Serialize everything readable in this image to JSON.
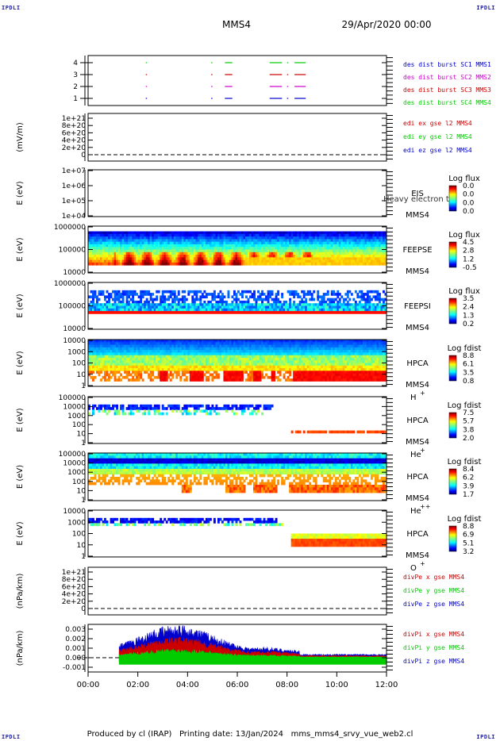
{
  "header": {
    "mission": "MMS4",
    "datetime": "29/Apr/2020 00:00"
  },
  "corner_label": "IPDLI",
  "footer": {
    "producer": "Produced by cl (IRAP)",
    "printing": "Printing date: 13/Jan/2024",
    "script": "mms_mms4_srvy_vue_web2.cl"
  },
  "colors": {
    "blue": "#0000cc",
    "magenta": "#cc00cc",
    "red": "#cc0000",
    "green": "#00cc00"
  },
  "time_axis": {
    "start_hour": 0,
    "end_hour": 12,
    "ticks": [
      "00:00",
      "02:00",
      "04:00",
      "06:00",
      "08:00",
      "10:00",
      "12:00"
    ]
  },
  "chart_data": [
    {
      "id": "burst",
      "type": "scatter",
      "yticks": [
        "1",
        "2",
        "3",
        "4"
      ],
      "legend": [
        {
          "text": "des dist burst SC1 MMS1",
          "color": "#0000cc"
        },
        {
          "text": "des dist burst SC2 MMS2",
          "color": "#cc00cc"
        },
        {
          "text": "des dist burst SC3 MMS3",
          "color": "#cc0000"
        },
        {
          "text": "des dist burst SC4 MMS4",
          "color": "#00cc00"
        }
      ],
      "series": [
        {
          "sc": 1,
          "intervals": [
            [
              2.32,
              2.36
            ],
            [
              4.95,
              5.0
            ],
            [
              5.5,
              5.8
            ],
            [
              7.3,
              7.8
            ],
            [
              8.0,
              8.05
            ],
            [
              8.3,
              8.75
            ]
          ]
        },
        {
          "sc": 2,
          "intervals": [
            [
              2.32,
              2.36
            ],
            [
              4.95,
              5.0
            ],
            [
              5.5,
              5.8
            ],
            [
              7.3,
              7.8
            ],
            [
              8.0,
              8.05
            ],
            [
              8.3,
              8.75
            ]
          ]
        },
        {
          "sc": 3,
          "intervals": [
            [
              2.32,
              2.36
            ],
            [
              4.95,
              5.0
            ],
            [
              5.5,
              5.8
            ],
            [
              7.3,
              7.8
            ],
            [
              8.0,
              8.05
            ],
            [
              8.3,
              8.75
            ]
          ]
        },
        {
          "sc": 4,
          "intervals": [
            [
              2.32,
              2.36
            ],
            [
              4.95,
              5.0
            ],
            [
              5.5,
              5.8
            ],
            [
              7.3,
              7.8
            ],
            [
              8.0,
              8.05
            ],
            [
              8.3,
              8.75
            ]
          ]
        }
      ]
    },
    {
      "id": "edi",
      "type": "line",
      "ylabel": "(mV/m)",
      "yticks": [
        "0",
        "2e+20",
        "4e+20",
        "6e+20",
        "8e+20",
        "1e+21"
      ],
      "legend": [
        {
          "text": "edi ex gse l2 MMS4",
          "color": "#cc0000"
        },
        {
          "text": "edi ey gse l2 MMS4",
          "color": "#00cc00"
        },
        {
          "text": "edi ez gse l2 MMS4",
          "color": "#0000cc"
        }
      ]
    },
    {
      "id": "eis",
      "type": "heatmap",
      "ylabel": "E (eV)",
      "yticks": [
        "1e+04",
        "1e+05",
        "1e+06",
        "1e+07"
      ],
      "instrument": "EIS",
      "spacecraft": "MMS4",
      "overlay_text": "Heavy electron to",
      "colorbar": {
        "title": "Log flux",
        "labels": [
          "0.0",
          "0.0",
          "0.0",
          "0.0"
        ]
      }
    },
    {
      "id": "feepse",
      "type": "heatmap",
      "ylabel": "E (eV)",
      "yticks": [
        "10000",
        "100000",
        "1000000"
      ],
      "instrument": "FEEPSE",
      "spacecraft": "MMS4",
      "colorbar": {
        "title": "Log flux",
        "labels": [
          "4.5",
          "2.8",
          "1.2",
          "-0.5"
        ]
      }
    },
    {
      "id": "feepsi",
      "type": "heatmap",
      "ylabel": "E (eV)",
      "yticks": [
        "10000",
        "100000",
        "1000000"
      ],
      "instrument": "FEEPSI",
      "spacecraft": "MMS4",
      "colorbar": {
        "title": "Log flux",
        "labels": [
          "3.5",
          "2.4",
          "1.3",
          "0.2"
        ]
      }
    },
    {
      "id": "hpca_h",
      "type": "heatmap",
      "ylabel": "E (eV)",
      "yticks": [
        "1",
        "10",
        "100",
        "1000",
        "10000"
      ],
      "instrument": "HPCA",
      "spacecraft": "MMS4",
      "species": "H",
      "charge": "+",
      "colorbar": {
        "title": "Log fdist",
        "labels": [
          "8.8",
          "6.1",
          "3.5",
          "0.8"
        ]
      }
    },
    {
      "id": "hpca_he1",
      "type": "heatmap",
      "ylabel": "E (eV)",
      "yticks": [
        "1",
        "10",
        "100",
        "1000",
        "10000",
        "100000"
      ],
      "instrument": "HPCA",
      "spacecraft": "MMS4",
      "species": "He",
      "charge": "+",
      "colorbar": {
        "title": "Log fdist",
        "labels": [
          "7.5",
          "5.7",
          "3.8",
          "2.0"
        ]
      }
    },
    {
      "id": "hpca_he2",
      "type": "heatmap",
      "ylabel": "E (eV)",
      "yticks": [
        "1",
        "10",
        "100",
        "1000",
        "10000",
        "100000"
      ],
      "instrument": "HPCA",
      "spacecraft": "MMS4",
      "species": "He",
      "charge": "++",
      "colorbar": {
        "title": "Log fdist",
        "labels": [
          "8.4",
          "6.2",
          "3.9",
          "1.7"
        ]
      }
    },
    {
      "id": "hpca_o",
      "type": "heatmap",
      "ylabel": "E (eV)",
      "yticks": [
        "1",
        "10",
        "100",
        "1000",
        "10000"
      ],
      "instrument": "HPCA",
      "spacecraft": "MMS4",
      "species": "O",
      "charge": "+",
      "colorbar": {
        "title": "Log fdist",
        "labels": [
          "8.8",
          "6.9",
          "5.1",
          "3.2"
        ]
      }
    },
    {
      "id": "dpe",
      "type": "line",
      "ylabel": "(nPa/km)",
      "yticks": [
        "0",
        "2e+20",
        "4e+20",
        "6e+20",
        "8e+20",
        "1e+21"
      ],
      "legend": [
        {
          "text": "divPe x gse MMS4",
          "color": "#cc0000"
        },
        {
          "text": "divPe y gse MMS4",
          "color": "#00cc00"
        },
        {
          "text": "divPe z gse MMS4",
          "color": "#0000cc"
        }
      ]
    },
    {
      "id": "dpi",
      "type": "area",
      "ylabel": "(nPa/km)",
      "yticks": [
        "-0.001",
        "0.000",
        "0.001",
        "0.002",
        "0.003"
      ],
      "ylim": [
        -0.0015,
        0.0035
      ],
      "data_start_hour": 1.25,
      "legend": [
        {
          "text": "divPi x gse MMS4",
          "color": "#cc0000"
        },
        {
          "text": "divPi y gse MMS4",
          "color": "#00cc00"
        },
        {
          "text": "divPi z gse MMS4",
          "color": "#0000cc"
        }
      ]
    }
  ]
}
